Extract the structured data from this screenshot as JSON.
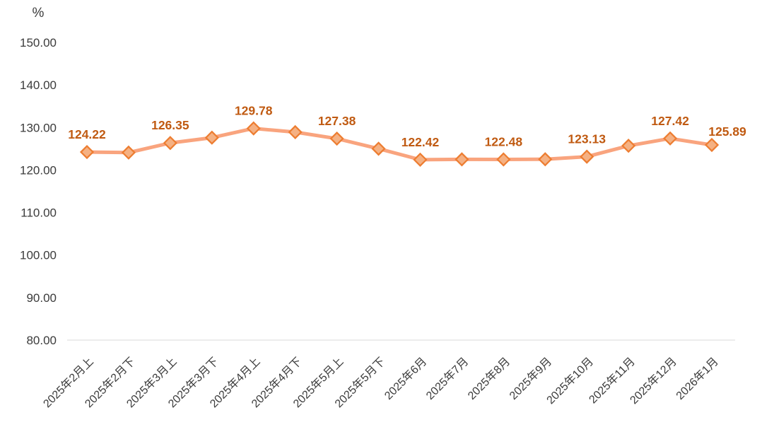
{
  "chart_data": {
    "type": "line",
    "unit_label": "%",
    "categories": [
      "2025年2月上",
      "2025年2月下",
      "2025年3月上",
      "2025年3月下",
      "2025年4月上",
      "2025年4月下",
      "2025年5月上",
      "2025年5月下",
      "2025年6月",
      "2025年7月",
      "2025年8月",
      "2025年9月",
      "2025年10月",
      "2025年11月",
      "2025年12月",
      "2026年1月"
    ],
    "values": [
      124.22,
      124.1,
      126.35,
      127.6,
      129.78,
      128.9,
      127.38,
      125.0,
      122.42,
      122.5,
      122.48,
      122.52,
      123.13,
      125.7,
      127.42,
      125.89
    ],
    "data_labels": [
      "124.22",
      null,
      "126.35",
      null,
      "129.78",
      null,
      "127.38",
      null,
      "122.42",
      null,
      "122.48",
      null,
      "123.13",
      null,
      "127.42",
      "125.89"
    ],
    "yticks": [
      "150.00",
      "140.00",
      "130.00",
      "120.00",
      "110.00",
      "100.00",
      "90.00",
      "80.00"
    ],
    "ytick_step": 10,
    "ylim": [
      80,
      150
    ],
    "grid": false,
    "legend": null,
    "title": "",
    "colors": {
      "line": "#F9A47E",
      "marker_fill": "#F5B183",
      "marker_border": "#ED7D31",
      "data_label": "#C05A11",
      "axis_text": "#3B3B3B",
      "axis_line": "#D9D9D9"
    }
  }
}
